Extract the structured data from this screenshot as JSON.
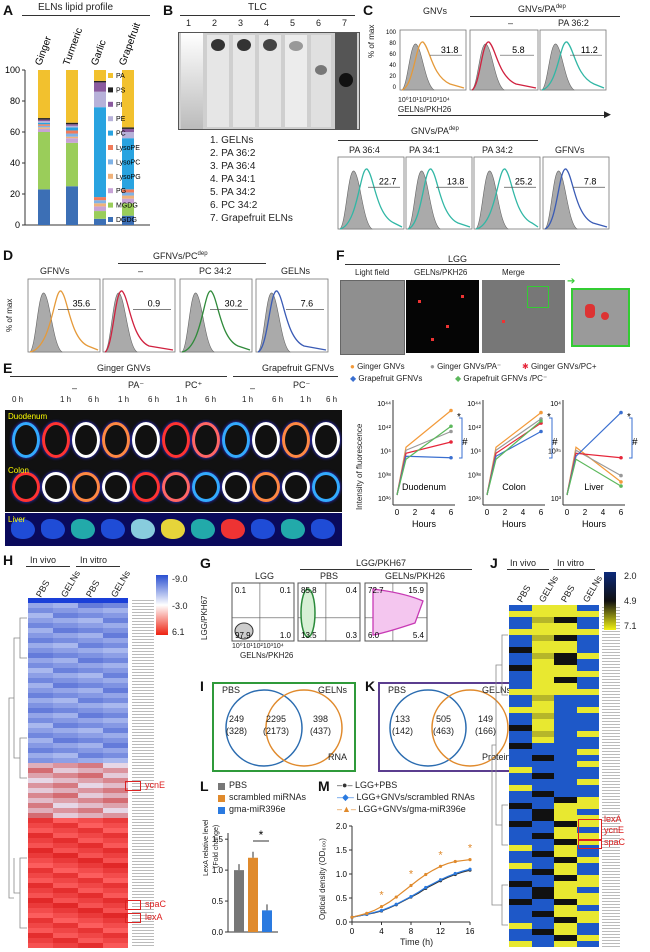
{
  "panel_labels": {
    "a": "A",
    "b": "B",
    "c": "C",
    "d": "D",
    "e": "E",
    "f": "F",
    "g": "G",
    "h": "H",
    "i": "I",
    "j": "J",
    "k": "K",
    "l": "L",
    "m": "M"
  },
  "panelA": {
    "title": "ELNs lipid profile",
    "legend": [
      {
        "label": "PA",
        "color": "#f2c12e"
      },
      {
        "label": "PS",
        "color": "#222222"
      },
      {
        "label": "PI",
        "color": "#8a5a9e"
      },
      {
        "label": "PE",
        "color": "#b7b1d9"
      },
      {
        "label": "PC",
        "color": "#29a3e0"
      },
      {
        "label": "LysoPE",
        "color": "#f07b5a"
      },
      {
        "label": "LysoPC",
        "color": "#7fb2e6"
      },
      {
        "label": "LysoPG",
        "color": "#f0b27a"
      },
      {
        "label": "PG",
        "color": "#c7a3d6"
      },
      {
        "label": "MGDG",
        "color": "#9acd5a"
      },
      {
        "label": "DGDG",
        "color": "#3c6fb5"
      }
    ]
  },
  "chart_data": [
    {
      "type": "bar",
      "id": "A",
      "title": "ELNs lipid profile",
      "categories": [
        "Ginger",
        "Turmeric",
        "Garlic",
        "Grapefruit"
      ],
      "stacked": true,
      "ylim": [
        0,
        100
      ],
      "yticks": [
        0,
        20,
        40,
        60,
        80,
        100
      ],
      "series": [
        {
          "name": "DGDG",
          "values": [
            23,
            25,
            4,
            6
          ]
        },
        {
          "name": "MGDG",
          "values": [
            37,
            28,
            5,
            8
          ]
        },
        {
          "name": "PG",
          "values": [
            2,
            3,
            3,
            3
          ]
        },
        {
          "name": "LysoPG",
          "values": [
            1,
            1,
            2,
            2
          ]
        },
        {
          "name": "LysoPC",
          "values": [
            1,
            2,
            2,
            2
          ]
        },
        {
          "name": "LysoPE",
          "values": [
            1,
            2,
            2,
            2
          ]
        },
        {
          "name": "PC",
          "values": [
            1,
            2,
            58,
            33
          ]
        },
        {
          "name": "PE",
          "values": [
            1,
            1,
            10,
            4
          ]
        },
        {
          "name": "PI",
          "values": [
            1,
            1,
            6,
            2
          ]
        },
        {
          "name": "PS",
          "values": [
            1,
            1,
            1,
            1
          ]
        },
        {
          "name": "PA",
          "values": [
            31,
            34,
            7,
            37
          ]
        }
      ]
    },
    {
      "type": "bar",
      "id": "L",
      "ylabel": "LexA relative level (Fold change)",
      "categories": [
        "PBS",
        "scrambled miRNAs",
        "gma-miR396e"
      ],
      "values": [
        1.0,
        1.2,
        0.35
      ],
      "ylim": [
        0,
        1.6
      ],
      "yticks": [
        0.0,
        0.5,
        1.0,
        1.5
      ],
      "significance": "*"
    },
    {
      "type": "line",
      "id": "M",
      "xlabel": "Time (h)",
      "ylabel": "Optical density (OD600)",
      "x": [
        0,
        1,
        2,
        3,
        4,
        5,
        6,
        7,
        8,
        9,
        10,
        11,
        12,
        13,
        14,
        15,
        16
      ],
      "xticks": [
        0,
        4,
        8,
        12,
        16
      ],
      "ylim": [
        0,
        2.0
      ],
      "yticks": [
        0.0,
        0.5,
        1.0,
        1.5,
        2.0
      ],
      "series": [
        {
          "name": "LGG+PBS",
          "values": [
            0.1,
            0.13,
            0.16,
            0.19,
            0.23,
            0.29,
            0.36,
            0.44,
            0.52,
            0.6,
            0.7,
            0.78,
            0.86,
            0.93,
            0.99,
            1.04,
            1.08
          ]
        },
        {
          "name": "LGG+GNVs/scrambled RNAs",
          "values": [
            0.1,
            0.13,
            0.16,
            0.2,
            0.24,
            0.3,
            0.37,
            0.45,
            0.53,
            0.62,
            0.72,
            0.8,
            0.88,
            0.95,
            1.01,
            1.06,
            1.1
          ]
        },
        {
          "name": "LGG+GNVs/gma-miR396e",
          "values": [
            0.1,
            0.14,
            0.18,
            0.24,
            0.32,
            0.41,
            0.52,
            0.64,
            0.76,
            0.88,
            0.99,
            1.08,
            1.16,
            1.22,
            1.26,
            1.28,
            1.3
          ]
        }
      ],
      "significance": "*"
    }
  ],
  "panelB": {
    "title": "TLC",
    "lanes": [
      "1",
      "2",
      "3",
      "4",
      "5",
      "6",
      "7"
    ],
    "legend": [
      "1.   GELNs",
      "2.   PA 36:2",
      "3.   PA 36:4",
      "4.   PA 34:1",
      "5.   PA 34:2",
      "6.   PC 34:2",
      "7.   Grapefruit ELNs"
    ]
  },
  "panelC": {
    "ylabel": "% of max",
    "xlabel": "GELNs/PKH26",
    "xticks": "10⁰10¹10²10³10⁴",
    "yticks": [
      "100",
      "80",
      "60",
      "40",
      "20",
      "0"
    ],
    "header1": "GNVs",
    "header2": "GNVs/PA",
    "sup": "dep",
    "dash": "–",
    "top": [
      {
        "label": "GNVs",
        "value": "31.8"
      },
      {
        "label": "–",
        "value": "5.8"
      },
      {
        "label": "PA 36:2",
        "value": "11.2"
      }
    ],
    "bottom_header": "GNVs/PA",
    "bottom": [
      {
        "label": "PA 36:4",
        "value": "22.7"
      },
      {
        "label": "PA 34:1",
        "value": "13.8"
      },
      {
        "label": "PA 34:2",
        "value": "25.2"
      },
      {
        "label": "GFNVs",
        "value": "7.8"
      }
    ]
  },
  "panelD": {
    "ylabel": "% of max",
    "header": "GFNVs/PC",
    "sup": "dep",
    "items": [
      {
        "label": "GFNVs",
        "value": "35.6"
      },
      {
        "label": "–",
        "value": "0.9"
      },
      {
        "label": "PC 34:2",
        "value": "30.2"
      },
      {
        "label": "GELNs",
        "value": "7.6"
      }
    ]
  },
  "panelE": {
    "group1": "Ginger GNVs",
    "group2": "Grapefruit GFNVs",
    "dash": "–",
    "pa": "PA⁻",
    "pc": "PC⁺",
    "pcm": "PC⁻",
    "times": [
      "0 h",
      "1 h",
      "6 h",
      "1 h",
      "6 h",
      "1 h",
      "6 h",
      "1 h",
      "6 h",
      "1 h",
      "6 h"
    ],
    "organs": [
      "Duodenum",
      "Colon",
      "Liver"
    ],
    "legend": [
      "Ginger GNVs",
      "Ginger GNVs/PA⁻",
      "Ginger GNVs/PC+",
      "Grapefruit GFNVs",
      "Grapefruit GFNVs /PC⁻"
    ],
    "ylabel": "Intensity of fluorescence",
    "xlabel": "Hours",
    "charts": [
      "Duodenum",
      "Colon",
      "Liver"
    ],
    "yt1": [
      "10⁴⁴",
      "10⁴²",
      "10⁴",
      "10³⁸",
      "10³⁶"
    ],
    "yt3": [
      "10⁴",
      "10³⁵",
      "10³"
    ],
    "xt": [
      "0",
      "2",
      "4",
      "6"
    ],
    "sig": "*",
    "hash": "#"
  },
  "panelF": {
    "title": "LGG",
    "cols": [
      "Light field",
      "GELNs/PKH26",
      "Merge"
    ]
  },
  "panelG": {
    "title": "LGG/PKH67",
    "ylabel": "LGG/PKH67",
    "xlabel": "GELNs/PKH26",
    "xticks": "10⁰10¹10²10³10⁴",
    "plots": [
      {
        "label": "LGG",
        "q": [
          "0.1",
          "0.1",
          "97.9",
          "1.0"
        ]
      },
      {
        "label": "PBS",
        "q": [
          "85.8",
          "0.4",
          "13.5",
          "0.3"
        ]
      },
      {
        "label": "GELNs/PKH26",
        "q": [
          "72.7",
          "15.9",
          "6.0",
          "5.4"
        ]
      }
    ]
  },
  "panelH": {
    "in_vivo": "In vivo",
    "in_vitro": "In vitro",
    "cols": [
      "PBS",
      "GELNs",
      "PBS",
      "GELNs"
    ],
    "scale": [
      "-9.0",
      "-3.0",
      "6.1"
    ],
    "genes": [
      "ycnE",
      "spaC",
      "lexA"
    ]
  },
  "panelI": {
    "a": "PBS",
    "b": "GELNs",
    "left": "249",
    "left2": "(328)",
    "mid": "2295",
    "mid2": "(2173)",
    "right": "398",
    "right2": "(437)",
    "tag": "RNA"
  },
  "panelK": {
    "a": "PBS",
    "b": "GELNs",
    "left": "133",
    "left2": "(142)",
    "mid": "505",
    "mid2": "(463)",
    "right": "149",
    "right2": "(166)",
    "tag": "Protein"
  },
  "panelJ": {
    "in_vivo": "In vivo",
    "in_vitro": "In vitro",
    "cols": [
      "PBS",
      "GELNs",
      "PBS",
      "GELNs"
    ],
    "scale": [
      "2.0",
      "4.9",
      "7.1"
    ],
    "genes": [
      "lexA",
      "ycnE",
      "spaC"
    ]
  },
  "panelL": {
    "legend": [
      "PBS",
      "scrambled miRNAs",
      "gma-miR396e"
    ],
    "ylabel": "LexA relative level",
    "ylabel2": "(Fold change)"
  },
  "panelM": {
    "legend": [
      "LGG+PBS",
      "LGG+GNVs/scrambled RNAs",
      "LGG+GNVs/gma-miR396e"
    ],
    "ylabel": "Optical density (OD₆₀₀)",
    "xlabel": "Time (h)"
  }
}
